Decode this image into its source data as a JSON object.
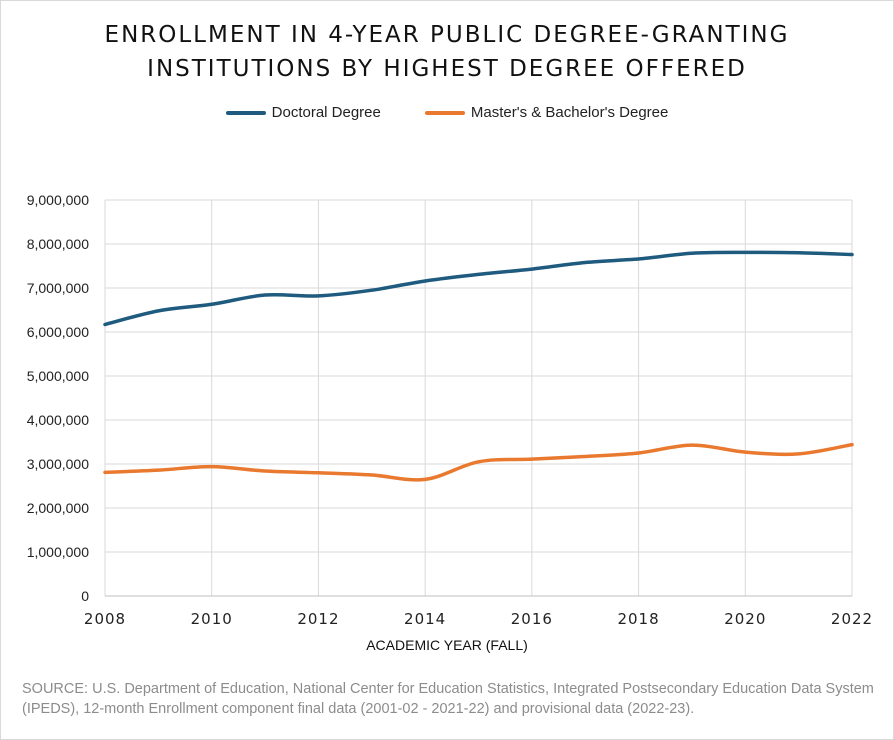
{
  "chart_data": {
    "type": "line",
    "title_lines": [
      "ENROLLMENT IN 4-YEAR PUBLIC DEGREE-GRANTING",
      "INSTITUTIONS BY HIGHEST DEGREE OFFERED"
    ],
    "xlabel": "ACADEMIC YEAR (FALL)",
    "ylabel": "",
    "x": [
      2008,
      2009,
      2010,
      2011,
      2012,
      2013,
      2014,
      2015,
      2016,
      2017,
      2018,
      2019,
      2020,
      2021,
      2022
    ],
    "xlim": [
      2008,
      2022
    ],
    "ylim": [
      0,
      9000000
    ],
    "x_ticks": [
      2008,
      2010,
      2012,
      2014,
      2016,
      2018,
      2020,
      2022
    ],
    "x_tick_labels": [
      "2008",
      "2010",
      "2012",
      "2014",
      "2016",
      "2018",
      "2020",
      "2022"
    ],
    "y_ticks": [
      0,
      1000000,
      2000000,
      3000000,
      4000000,
      5000000,
      6000000,
      7000000,
      8000000,
      9000000
    ],
    "y_tick_labels": [
      "0",
      "1,000,000",
      "2,000,000",
      "3,000,000",
      "4,000,000",
      "5,000,000",
      "6,000,000",
      "7,000,000",
      "8,000,000",
      "9,000,000"
    ],
    "grid": "vertical and horizontal",
    "legend_position": "top-center",
    "series": [
      {
        "name": "Doctoral Degree",
        "color": "#1f5a7f",
        "values": [
          6170000,
          6480000,
          6630000,
          6840000,
          6820000,
          6950000,
          7160000,
          7310000,
          7430000,
          7580000,
          7660000,
          7790000,
          7810000,
          7800000,
          7760000
        ]
      },
      {
        "name": "Master's & Bachelor's Degree",
        "color": "#e9792f",
        "values": [
          2810000,
          2860000,
          2940000,
          2840000,
          2800000,
          2750000,
          2650000,
          3050000,
          3110000,
          3170000,
          3250000,
          3430000,
          3270000,
          3230000,
          3440000
        ]
      }
    ]
  },
  "source_text": "SOURCE: U.S. Department of Education, National Center for Education Statistics, Integrated Postsecondary Education Data System (IPEDS), 12-month Enrollment component final data (2001-02 - 2021-22) and provisional data (2022-23)."
}
